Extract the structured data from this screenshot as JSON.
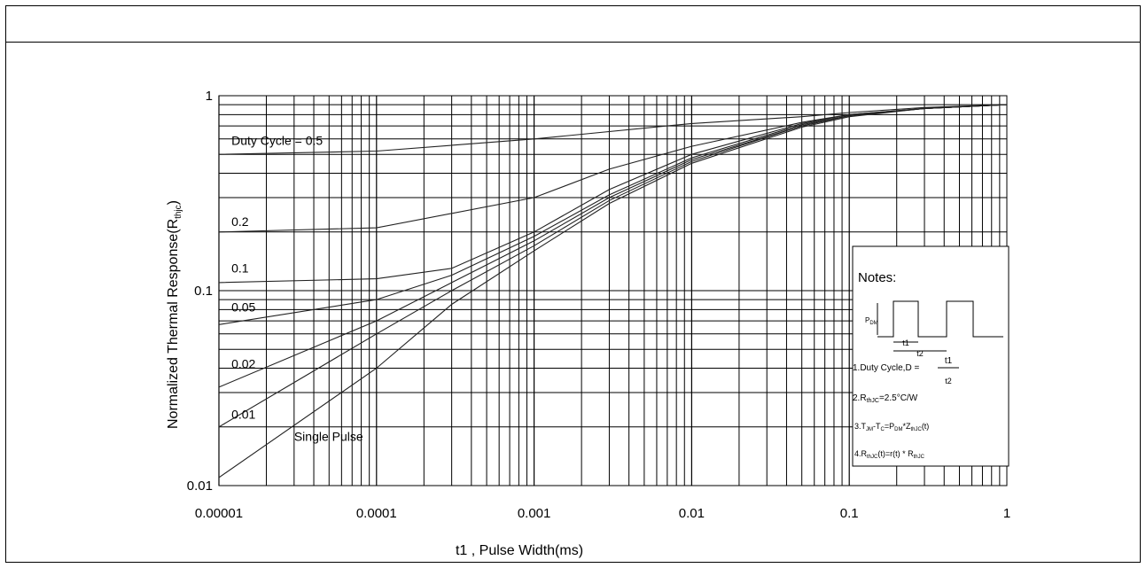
{
  "chart_data": {
    "type": "line",
    "xscale": "log",
    "yscale": "log",
    "xlim": [
      1e-05,
      1
    ],
    "ylim": [
      0.01,
      1
    ],
    "xlabel": "t1 , Pulse Width(ms)",
    "ylabel": "Normalized Thermal Response(R",
    "ylabel_sub": "thjc",
    "ylabel_close": ")",
    "x_ticks": [
      {
        "value": 1e-05,
        "label": "0.00001"
      },
      {
        "value": 0.0001,
        "label": "0.0001"
      },
      {
        "value": 0.001,
        "label": "0.001"
      },
      {
        "value": 0.01,
        "label": "0.01"
      },
      {
        "value": 0.1,
        "label": "0.1"
      },
      {
        "value": 1,
        "label": "1"
      }
    ],
    "y_ticks": [
      {
        "value": 1,
        "label": "1"
      },
      {
        "value": 0.1,
        "label": "0.1"
      },
      {
        "value": 0.01,
        "label": "0.01"
      }
    ],
    "grid": true,
    "series": [
      {
        "name": "Duty Cycle = 0.5",
        "x": [
          1e-05,
          0.0001,
          0.001,
          0.01,
          0.05,
          0.1,
          0.3,
          1
        ],
        "y": [
          0.5,
          0.52,
          0.6,
          0.72,
          0.78,
          0.82,
          0.87,
          0.9
        ]
      },
      {
        "name": "0.2",
        "x": [
          1e-05,
          0.0001,
          0.001,
          0.003,
          0.01,
          0.05,
          0.1,
          0.3,
          1
        ],
        "y": [
          0.2,
          0.21,
          0.3,
          0.42,
          0.55,
          0.73,
          0.8,
          0.86,
          0.9
        ]
      },
      {
        "name": "0.1",
        "x": [
          1e-05,
          0.0001,
          0.0003,
          0.001,
          0.003,
          0.01,
          0.05,
          0.1,
          0.3,
          1
        ],
        "y": [
          0.11,
          0.115,
          0.13,
          0.2,
          0.33,
          0.5,
          0.72,
          0.8,
          0.86,
          0.9
        ]
      },
      {
        "name": "0.05",
        "x": [
          1e-05,
          0.0001,
          0.0003,
          0.001,
          0.003,
          0.01,
          0.05,
          0.1,
          0.3,
          1
        ],
        "y": [
          0.067,
          0.09,
          0.12,
          0.19,
          0.31,
          0.48,
          0.71,
          0.79,
          0.86,
          0.9
        ]
      },
      {
        "name": "0.02",
        "x": [
          1e-05,
          0.0001,
          0.0003,
          0.001,
          0.003,
          0.01,
          0.05,
          0.1,
          0.3,
          1
        ],
        "y": [
          0.032,
          0.07,
          0.11,
          0.18,
          0.3,
          0.47,
          0.7,
          0.79,
          0.86,
          0.9
        ]
      },
      {
        "name": "0.01",
        "x": [
          1e-05,
          0.0001,
          0.0003,
          0.001,
          0.003,
          0.01,
          0.05,
          0.1,
          0.3,
          1
        ],
        "y": [
          0.02,
          0.06,
          0.1,
          0.17,
          0.29,
          0.46,
          0.7,
          0.79,
          0.86,
          0.9
        ]
      },
      {
        "name": "Single Pulse",
        "x": [
          1e-05,
          0.0001,
          0.0003,
          0.001,
          0.003,
          0.01,
          0.05,
          0.1,
          0.3,
          1
        ],
        "y": [
          0.011,
          0.04,
          0.085,
          0.16,
          0.28,
          0.45,
          0.69,
          0.78,
          0.86,
          0.9
        ]
      }
    ],
    "series_labels": [
      {
        "text": "Duty Cycle = 0.5",
        "x": 1.2e-05,
        "y": 0.56
      },
      {
        "text": "0.2",
        "x": 1.2e-05,
        "y": 0.215
      },
      {
        "text": "0.1",
        "x": 1.2e-05,
        "y": 0.124
      },
      {
        "text": "0.05",
        "x": 1.2e-05,
        "y": 0.078
      },
      {
        "text": "0.02",
        "x": 1.2e-05,
        "y": 0.04
      },
      {
        "text": "0.01",
        "x": 1.2e-05,
        "y": 0.022
      },
      {
        "text": "Single Pulse",
        "x": 3e-05,
        "y": 0.017
      }
    ],
    "notes": {
      "title": "Notes:",
      "pulse_label_pdm": "P",
      "pulse_label_pdm_sub": "DM",
      "t1_label": "t1",
      "t2_label": "t2",
      "note1_prefix": "1.Duty Cycle,D =",
      "note1_num": "t1",
      "note1_den": "t2",
      "note2": "2.R",
      "note2_sub": "thJC",
      "note2_rest": "=2.5°C/W",
      "note3": "3.T",
      "note3_sub1": "JM",
      "note3_mid": "-T",
      "note3_sub2": "C",
      "note3_mid2": "=P",
      "note3_sub3": "DM",
      "note3_mid3": "*Z",
      "note3_sub4": "thJC",
      "note3_end": "(t)",
      "note4": "4.R",
      "note4_sub": "thJC",
      "note4_rest": "(t)=r(t) * R",
      "note4_sub2": "thJC"
    }
  }
}
